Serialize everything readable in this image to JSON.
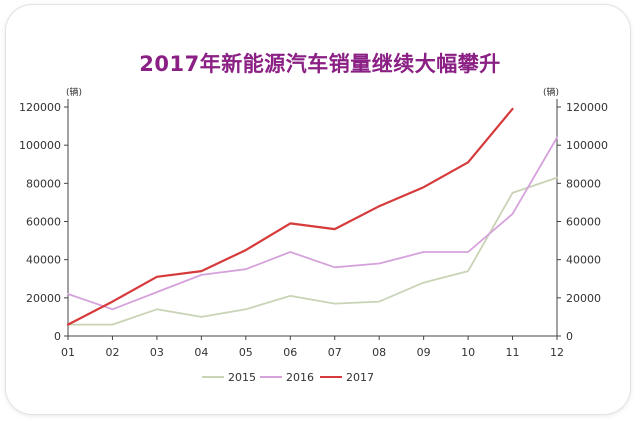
{
  "chart_data": {
    "type": "line",
    "title": "2017年新能源汽车销量继续大幅攀升",
    "unit_left": "(辆)",
    "unit_right": "(辆)",
    "categories": [
      "01",
      "02",
      "03",
      "04",
      "05",
      "06",
      "07",
      "08",
      "09",
      "10",
      "11",
      "12"
    ],
    "ylim": [
      0,
      120000
    ],
    "yticks": [
      "0",
      "20000",
      "40000",
      "60000",
      "80000",
      "100000",
      "120000"
    ],
    "ytick_values": [
      0,
      20000,
      40000,
      60000,
      80000,
      100000,
      120000
    ],
    "grid": false,
    "legend_position": "bottom-center",
    "series": [
      {
        "name": "2015",
        "color": "#c9d3b6",
        "values": [
          6000,
          6000,
          14000,
          10000,
          14000,
          21000,
          17000,
          18000,
          28000,
          34000,
          75000,
          83000
        ]
      },
      {
        "name": "2016",
        "color": "#d6a2dc",
        "values": [
          22000,
          14000,
          23000,
          32000,
          35000,
          44000,
          36000,
          38000,
          44000,
          44000,
          64000,
          104000
        ]
      },
      {
        "name": "2017",
        "color": "#d63a3a",
        "values": [
          6000,
          18000,
          31000,
          34000,
          45000,
          59000,
          56000,
          68000,
          78000,
          91000,
          119000,
          null
        ]
      }
    ]
  }
}
